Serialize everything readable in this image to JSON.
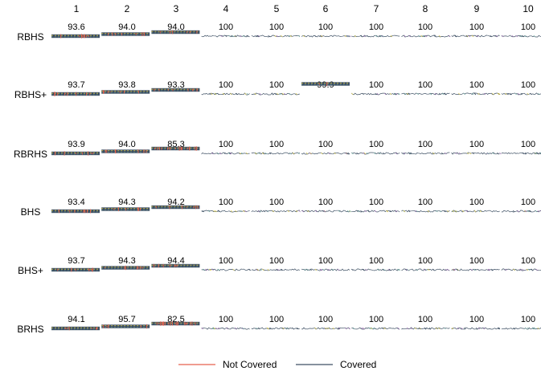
{
  "chart_data": {
    "type": "line",
    "column_labels": [
      "1",
      "2",
      "3",
      "4",
      "5",
      "6",
      "7",
      "8",
      "9",
      "10"
    ],
    "row_labels": [
      "RBHS",
      "RBHS+",
      "RBRHS",
      "BHS",
      "BHS+",
      "BRHS"
    ],
    "coverage": [
      [
        "93.6",
        "94.0",
        "94.0",
        "100",
        "100",
        "100",
        "100",
        "100",
        "100",
        "100"
      ],
      [
        "93.7",
        "93.8",
        "93.3",
        "100",
        "100",
        "99.9",
        "100",
        "100",
        "100",
        "100"
      ],
      [
        "93.9",
        "94.0",
        "85.3",
        "100",
        "100",
        "100",
        "100",
        "100",
        "100",
        "100"
      ],
      [
        "93.4",
        "94.3",
        "94.2",
        "100",
        "100",
        "100",
        "100",
        "100",
        "100",
        "100"
      ],
      [
        "93.7",
        "94.3",
        "94.4",
        "100",
        "100",
        "100",
        "100",
        "100",
        "100",
        "100"
      ],
      [
        "94.1",
        "95.7",
        "82.5",
        "100",
        "100",
        "100",
        "100",
        "100",
        "100",
        "100"
      ]
    ],
    "legend": [
      {
        "label": "Not Covered",
        "color": "#e8614e"
      },
      {
        "label": "Covered",
        "color": "#3d4f63"
      }
    ],
    "legend_placement": "bottom",
    "grid": false
  }
}
